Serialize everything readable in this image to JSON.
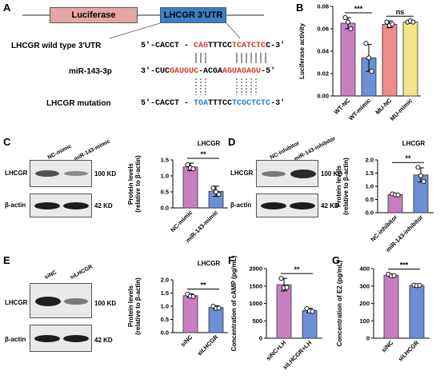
{
  "panels": {
    "A": "A",
    "B": "B",
    "C": "C",
    "D": "D",
    "E": "E",
    "F": "F",
    "G": "G"
  },
  "panelA": {
    "luciferase_label": "Luciferase",
    "utr_label": "LHCGR  3'UTR",
    "wt_label": "LHCGR wild type 3'UTR",
    "mir_label": "miR-143-3p",
    "mut_label": "LHCGR mutation",
    "wt_seq": [
      "5'-CACCT - ",
      "CAG",
      "TTTCC",
      "TCATCTC",
      "C-3'"
    ],
    "mir_seq": [
      "3'-CUC",
      "GAUGUC",
      "-ACGA",
      "AGUAGAGU",
      "-5'"
    ],
    "mut_seq": [
      "5'-CACCT - ",
      "TGA",
      "TTTCC",
      "TCGCTCTC",
      "-3'"
    ],
    "colors": {
      "luciferase": "#e7a6a6",
      "utr": "#3d7fc2",
      "red": "#d43a2f",
      "blue": "#2a7ec0"
    }
  },
  "panelC": {
    "lanes": [
      "NC-mimic",
      "miR-143-mimic"
    ],
    "rows": [
      "LHCGR",
      "β-actin"
    ],
    "kd": [
      "100 KD",
      "42 KD"
    ]
  },
  "panelD": {
    "lanes": [
      "NC-inhibitor",
      "miR-143-inhibitor"
    ],
    "rows": [
      "LHCGR",
      "β-actin"
    ],
    "kd": [
      "100 KD",
      "42 KD"
    ]
  },
  "panelE": {
    "lanes": [
      "siNC",
      "siLHCGR"
    ],
    "rows": [
      "LHCGR",
      "β-actin"
    ],
    "kd": [
      "100 KD",
      "42 KD"
    ]
  },
  "chart_data": [
    {
      "panel": "B",
      "type": "bar",
      "title": "",
      "ylabel": "Luciferase activity",
      "xlabel": "",
      "categories": [
        "WT-NC",
        "WT-mimic",
        "MU-NC",
        "MU-mimic"
      ],
      "values": [
        0.065,
        0.034,
        0.064,
        0.066
      ],
      "errors": [
        0.005,
        0.012,
        0.003,
        0.001
      ],
      "points": [
        [
          0.07,
          0.066,
          0.06
        ],
        [
          0.047,
          0.034,
          0.022
        ],
        [
          0.066,
          0.063,
          0.064
        ],
        [
          0.066,
          0.067,
          0.066
        ]
      ],
      "colors": [
        "#c77fc2",
        "#6c8fd6",
        "#f08c8c",
        "#f2e58a"
      ],
      "ylim": [
        0.0,
        0.08
      ],
      "yticks": [
        "0.00",
        "0.02",
        "0.04",
        "0.06",
        "0.08"
      ],
      "significance": [
        {
          "label": "***",
          "from": 0,
          "to": 1
        },
        {
          "label": "ns",
          "from": 2,
          "to": 3
        }
      ]
    },
    {
      "panel": "C",
      "type": "bar",
      "title": "LHCGR",
      "ylabel": "Protein levels\n(relative to β-actin)",
      "xlabel": "",
      "categories": [
        "NC-mimic",
        "miR-143-mimic"
      ],
      "values": [
        1.28,
        0.52
      ],
      "errors": [
        0.12,
        0.16
      ],
      "points": [
        [
          1.35,
          1.25,
          1.22
        ],
        [
          0.62,
          0.5,
          0.42
        ]
      ],
      "colors": [
        "#c77fc2",
        "#6c8fd6"
      ],
      "ylim": [
        0.0,
        1.5
      ],
      "yticks": [
        "0.0",
        "0.5",
        "1.0",
        "1.5"
      ],
      "significance": [
        {
          "label": "**",
          "from": 0,
          "to": 1
        }
      ]
    },
    {
      "panel": "D",
      "type": "bar",
      "title": "LHCGR",
      "ylabel": "Protein levels\n(relative to β-actin)",
      "xlabel": "",
      "categories": [
        "NC-inhibitor",
        "miR-143-inhibitor"
      ],
      "values": [
        0.69,
        1.43
      ],
      "errors": [
        0.04,
        0.27
      ],
      "points": [
        [
          0.71,
          0.68,
          0.67
        ],
        [
          1.72,
          1.4,
          1.18
        ]
      ],
      "colors": [
        "#c77fc2",
        "#6c8fd6"
      ],
      "ylim": [
        0.0,
        2.0
      ],
      "yticks": [
        "0.0",
        "0.5",
        "1.0",
        "1.5",
        "2.0"
      ],
      "significance": [
        {
          "label": "**",
          "from": 0,
          "to": 1
        }
      ]
    },
    {
      "panel": "E",
      "type": "bar",
      "title": "LHCGR",
      "ylabel": "Protein levels\n(relative to β-actin)",
      "xlabel": "",
      "categories": [
        "siNC",
        "siLHCGR"
      ],
      "values": [
        1.4,
        0.95
      ],
      "errors": [
        0.07,
        0.07
      ],
      "points": [
        [
          1.45,
          1.38,
          1.37
        ],
        [
          1.0,
          0.92,
          0.93
        ]
      ],
      "colors": [
        "#c77fc2",
        "#6c8fd6"
      ],
      "ylim": [
        0.0,
        2.0
      ],
      "yticks": [
        "0.0",
        "0.5",
        "1.0",
        "1.5",
        "2.0"
      ],
      "significance": [
        {
          "label": "**",
          "from": 0,
          "to": 1
        }
      ]
    },
    {
      "panel": "F",
      "type": "bar",
      "title": "",
      "ylabel": "Concentration of cAMP (pg/mL)",
      "xlabel": "",
      "categories": [
        "siNC+LH",
        "siLHCGR+LH"
      ],
      "values": [
        1540,
        800
      ],
      "errors": [
        180,
        60
      ],
      "points": [
        [
          1720,
          1450,
          1460
        ],
        [
          850,
          780,
          770
        ]
      ],
      "colors": [
        "#c77fc2",
        "#6c8fd6"
      ],
      "ylim": [
        0,
        2000
      ],
      "yticks": [
        "0",
        "500",
        "1000",
        "1500",
        "2000"
      ],
      "significance": [
        {
          "label": "**",
          "from": 0,
          "to": 1
        }
      ]
    },
    {
      "panel": "G",
      "type": "bar",
      "title": "",
      "ylabel": "Concentration of E2 (pg/mL)",
      "xlabel": "",
      "categories": [
        "siNC",
        "siLHCGR"
      ],
      "values": [
        362,
        304
      ],
      "errors": [
        8,
        4
      ],
      "points": [
        [
          368,
          358,
          360
        ],
        [
          305,
          302,
          304
        ]
      ],
      "colors": [
        "#c77fc2",
        "#6c8fd6"
      ],
      "ylim": [
        0,
        400
      ],
      "yticks": [
        "0",
        "100",
        "200",
        "300",
        "400"
      ],
      "significance": [
        {
          "label": "***",
          "from": 0,
          "to": 1
        }
      ]
    }
  ]
}
